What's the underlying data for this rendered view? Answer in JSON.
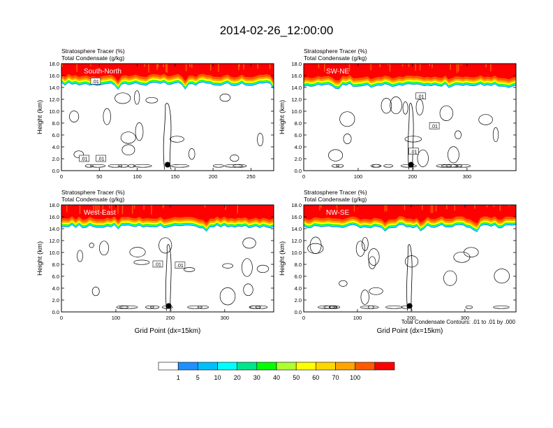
{
  "figure": {
    "title": "2014-02-26_12:00:00",
    "contour_note": "Total Condensate Contours: .01 to .01 by .000"
  },
  "colorbar": {
    "levels": [
      "1",
      "5",
      "10",
      "20",
      "30",
      "40",
      "50",
      "60",
      "70",
      "100"
    ],
    "colors": [
      "#ffffff",
      "#1e90ff",
      "#00bfff",
      "#00ffff",
      "#00e68a",
      "#00ff00",
      "#adff2f",
      "#ffff00",
      "#ffd700",
      "#ffa500",
      "#ff5a00",
      "#ff0000"
    ]
  },
  "chart_data": [
    {
      "type": "heatmap",
      "panel_label": "South-North",
      "title_line1": "Stratosphere Tracer   (%)",
      "title_line2": "Total Condensate   (g/kg)",
      "ylabel": "Height (km)",
      "xlabel": "",
      "xlim": [
        0,
        280
      ],
      "ylim": [
        0,
        18
      ],
      "xticks": [
        0,
        50,
        100,
        150,
        200,
        250
      ],
      "yticks": [
        "0.0",
        "2.0",
        "4.0",
        "6.0",
        "8.0",
        "10.0",
        "12.0",
        "14.0",
        "16.0",
        "18.0"
      ],
      "tropopause_km": 15.0,
      "marker": {
        "x": 140,
        "y": 1.0
      },
      "contour_labels": [
        {
          "text": ".01",
          "x": 45,
          "y": 15.0
        },
        {
          "text": ".01",
          "x": 30,
          "y": 2.0
        },
        {
          "text": ".01",
          "x": 52,
          "y": 2.0
        }
      ]
    },
    {
      "type": "heatmap",
      "panel_label": "SW-NE",
      "title_line1": "Stratosphere Tracer   (%)",
      "title_line2": "Total Condensate   (g/kg)",
      "ylabel": "Height (km)",
      "xlabel": "",
      "xlim": [
        0,
        390
      ],
      "ylim": [
        0,
        18
      ],
      "xticks": [
        0,
        100,
        200,
        300
      ],
      "yticks": [
        "0.0",
        "2.0",
        "4.0",
        "6.0",
        "8.0",
        "10.0",
        "12.0",
        "14.0",
        "16.0",
        "18.0"
      ],
      "tropopause_km": 14.8,
      "marker": {
        "x": 197,
        "y": 1.0
      },
      "contour_labels": [
        {
          "text": ".01",
          "x": 215,
          "y": 12.5
        },
        {
          "text": ".01",
          "x": 240,
          "y": 7.5
        },
        {
          "text": ".01",
          "x": 202,
          "y": 3.2
        }
      ]
    },
    {
      "type": "heatmap",
      "panel_label": "West-East",
      "title_line1": "Stratosphere Tracer   (%)",
      "title_line2": "Total Condensate   (g/kg)",
      "ylabel": "Height (km)",
      "xlabel": "Grid Point (dx=15km)",
      "xlim": [
        0,
        390
      ],
      "ylim": [
        0,
        18
      ],
      "xticks": [
        0,
        100,
        200,
        300
      ],
      "yticks": [
        "0.0",
        "2.0",
        "4.0",
        "6.0",
        "8.0",
        "10.0",
        "12.0",
        "14.0",
        "16.0",
        "18.0"
      ],
      "tropopause_km": 14.8,
      "marker": {
        "x": 197,
        "y": 1.0
      },
      "contour_labels": [
        {
          "text": ".01",
          "x": 177,
          "y": 8.0
        },
        {
          "text": ".01",
          "x": 218,
          "y": 7.8
        }
      ]
    },
    {
      "type": "heatmap",
      "panel_label": "NW-SE",
      "title_line1": "Stratosphere Tracer   (%)",
      "title_line2": "Total Condensate   (g/kg)",
      "ylabel": "Height (km)",
      "xlabel": "Grid Point (dx=15km)",
      "xlim": [
        0,
        395
      ],
      "ylim": [
        0,
        18
      ],
      "xticks": [
        0,
        100,
        200,
        300
      ],
      "yticks": [
        "0.0",
        "2.0",
        "4.0",
        "6.0",
        "8.0",
        "10.0",
        "12.0",
        "14.0",
        "16.0",
        "18.0"
      ],
      "tropopause_km": 14.8,
      "marker": {
        "x": 197,
        "y": 1.0
      },
      "contour_labels": []
    }
  ]
}
